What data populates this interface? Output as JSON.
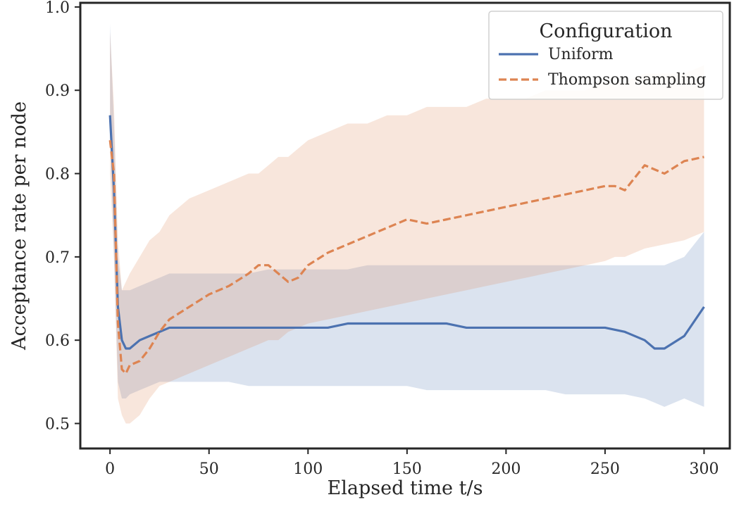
{
  "chart_data": {
    "type": "line",
    "xlabel": "Elapsed time t/s",
    "ylabel": "Acceptance rate per node",
    "xlim": [
      -15,
      313
    ],
    "ylim": [
      0.47,
      1.005
    ],
    "xticks": [
      0,
      50,
      100,
      150,
      200,
      250,
      300
    ],
    "xtick_labels": [
      "0",
      "50",
      "100",
      "150",
      "200",
      "250",
      "300"
    ],
    "yticks": [
      0.5,
      0.6,
      0.7,
      0.8,
      0.9,
      1.0
    ],
    "ytick_labels": [
      "0.5",
      "0.6",
      "0.7",
      "0.8",
      "0.9",
      "1.0"
    ],
    "grid": false,
    "legend": {
      "title": "Configuration",
      "placement": "top-right"
    },
    "series": [
      {
        "name": "Uniform",
        "color": "#4c72b0",
        "band_color": "#4c72b0",
        "style": "solid",
        "x": [
          0,
          2,
          4,
          6,
          8,
          10,
          15,
          20,
          25,
          30,
          40,
          50,
          60,
          70,
          80,
          90,
          100,
          110,
          120,
          130,
          140,
          150,
          160,
          170,
          180,
          190,
          200,
          210,
          220,
          230,
          240,
          250,
          260,
          270,
          275,
          280,
          290,
          300
        ],
        "y": [
          0.87,
          0.78,
          0.64,
          0.6,
          0.59,
          0.59,
          0.6,
          0.605,
          0.61,
          0.615,
          0.615,
          0.615,
          0.615,
          0.615,
          0.615,
          0.615,
          0.615,
          0.615,
          0.62,
          0.62,
          0.62,
          0.62,
          0.62,
          0.62,
          0.615,
          0.615,
          0.615,
          0.615,
          0.615,
          0.615,
          0.615,
          0.615,
          0.61,
          0.6,
          0.59,
          0.59,
          0.605,
          0.64
        ],
        "lower": [
          0.86,
          0.7,
          0.55,
          0.53,
          0.53,
          0.535,
          0.54,
          0.545,
          0.55,
          0.55,
          0.55,
          0.55,
          0.55,
          0.545,
          0.545,
          0.545,
          0.545,
          0.545,
          0.545,
          0.545,
          0.545,
          0.545,
          0.54,
          0.54,
          0.54,
          0.54,
          0.54,
          0.54,
          0.54,
          0.535,
          0.535,
          0.535,
          0.535,
          0.53,
          0.525,
          0.52,
          0.53,
          0.52
        ],
        "upper": [
          0.98,
          0.86,
          0.7,
          0.66,
          0.66,
          0.66,
          0.665,
          0.67,
          0.675,
          0.68,
          0.68,
          0.68,
          0.68,
          0.68,
          0.685,
          0.685,
          0.685,
          0.685,
          0.685,
          0.69,
          0.69,
          0.69,
          0.69,
          0.69,
          0.69,
          0.69,
          0.69,
          0.69,
          0.69,
          0.69,
          0.69,
          0.69,
          0.69,
          0.69,
          0.69,
          0.69,
          0.7,
          0.73
        ]
      },
      {
        "name": "Thompson sampling",
        "color": "#dd8452",
        "band_color": "#dd8452",
        "style": "dashed",
        "x": [
          0,
          2,
          4,
          6,
          8,
          10,
          15,
          20,
          25,
          30,
          40,
          50,
          60,
          70,
          75,
          80,
          85,
          90,
          95,
          100,
          110,
          120,
          130,
          140,
          150,
          160,
          170,
          180,
          190,
          200,
          210,
          220,
          230,
          240,
          250,
          255,
          260,
          270,
          280,
          290,
          300
        ],
        "y": [
          0.84,
          0.8,
          0.62,
          0.565,
          0.56,
          0.57,
          0.575,
          0.59,
          0.61,
          0.625,
          0.64,
          0.655,
          0.665,
          0.68,
          0.69,
          0.69,
          0.68,
          0.67,
          0.675,
          0.69,
          0.705,
          0.715,
          0.725,
          0.735,
          0.745,
          0.74,
          0.745,
          0.75,
          0.755,
          0.76,
          0.765,
          0.77,
          0.775,
          0.78,
          0.785,
          0.785,
          0.78,
          0.81,
          0.8,
          0.815,
          0.82
        ],
        "lower": [
          0.8,
          0.7,
          0.53,
          0.51,
          0.5,
          0.5,
          0.51,
          0.53,
          0.545,
          0.55,
          0.56,
          0.57,
          0.58,
          0.59,
          0.595,
          0.6,
          0.6,
          0.61,
          0.615,
          0.62,
          0.625,
          0.63,
          0.635,
          0.64,
          0.645,
          0.65,
          0.655,
          0.66,
          0.665,
          0.67,
          0.675,
          0.68,
          0.685,
          0.69,
          0.695,
          0.7,
          0.7,
          0.71,
          0.715,
          0.72,
          0.73
        ],
        "upper": [
          0.97,
          0.88,
          0.72,
          0.66,
          0.67,
          0.68,
          0.7,
          0.72,
          0.73,
          0.75,
          0.77,
          0.78,
          0.79,
          0.8,
          0.8,
          0.81,
          0.82,
          0.82,
          0.83,
          0.84,
          0.85,
          0.86,
          0.86,
          0.87,
          0.87,
          0.88,
          0.88,
          0.88,
          0.89,
          0.89,
          0.89,
          0.9,
          0.9,
          0.9,
          0.91,
          0.91,
          0.91,
          0.92,
          0.92,
          0.92,
          0.93
        ]
      }
    ]
  }
}
